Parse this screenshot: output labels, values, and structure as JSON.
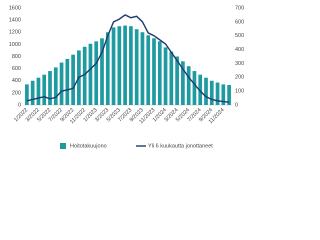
{
  "chart_data": {
    "type": "bar",
    "categories": [
      "1/2022",
      null,
      "3/2022",
      null,
      "5/2022",
      null,
      "7/2022",
      null,
      "9/2022",
      null,
      "11/2022",
      null,
      "1/2023",
      null,
      "3/2023",
      null,
      "5/2023",
      null,
      "7/2023",
      null,
      "9/2023",
      null,
      "11/2023",
      null,
      "1/2024",
      null,
      "3/2024",
      null,
      "5/2024",
      null,
      "7/2024",
      null,
      "9/2024",
      null,
      "11/2024",
      null
    ],
    "series": [
      {
        "name": "Hoitotakuujono",
        "type": "bar",
        "color": "#1e9aa0",
        "values": [
          340,
          400,
          450,
          500,
          560,
          620,
          700,
          760,
          830,
          900,
          960,
          1010,
          1050,
          1100,
          1200,
          1280,
          1300,
          1310,
          1300,
          1250,
          1200,
          1150,
          1100,
          1050,
          950,
          880,
          800,
          720,
          640,
          560,
          500,
          450,
          400,
          370,
          340,
          330
        ]
      },
      {
        "name": "Yli 6 kuukautta jonottaneet",
        "type": "line",
        "axis": "y2",
        "color": "#1f3a6e",
        "values": [
          30,
          40,
          50,
          60,
          45,
          55,
          100,
          110,
          120,
          200,
          220,
          260,
          300,
          380,
          500,
          600,
          620,
          650,
          630,
          640,
          600,
          520,
          500,
          470,
          440,
          380,
          320,
          260,
          200,
          150,
          100,
          60,
          40,
          30,
          25,
          20
        ]
      }
    ],
    "ylim": [
      0,
      1600
    ],
    "yticks": [
      0,
      200,
      400,
      600,
      800,
      1000,
      1200,
      1400,
      1600
    ],
    "y2lim": [
      0,
      700
    ],
    "y2ticks": [
      0,
      100,
      200,
      300,
      400,
      500,
      600,
      700
    ],
    "grid": false
  }
}
